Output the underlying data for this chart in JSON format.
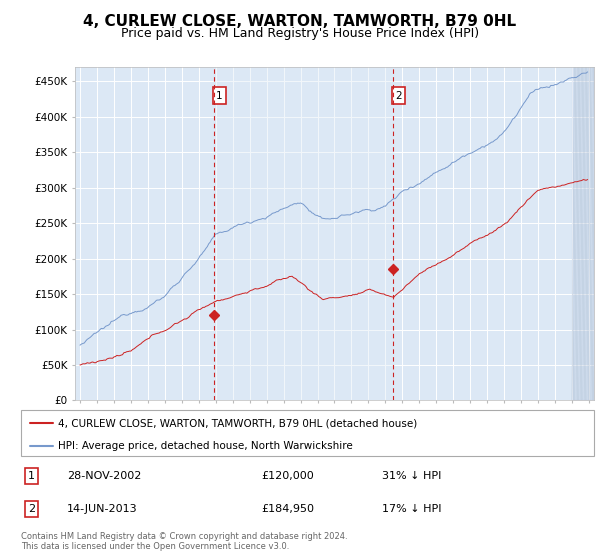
{
  "title": "4, CURLEW CLOSE, WARTON, TAMWORTH, B79 0HL",
  "subtitle": "Price paid vs. HM Land Registry's House Price Index (HPI)",
  "title_fontsize": 11,
  "subtitle_fontsize": 9,
  "background_color": "#ffffff",
  "plot_bg_color": "#dce8f5",
  "grid_color": "#ffffff",
  "hpi_line_color": "#7799cc",
  "sale_line_color": "#cc2222",
  "vline_color": "#cc2222",
  "marker1_year": 2002.91,
  "marker2_year": 2013.45,
  "sale1_price": 120000,
  "sale2_price": 184950,
  "legend_label_sale": "4, CURLEW CLOSE, WARTON, TAMWORTH, B79 0HL (detached house)",
  "legend_label_hpi": "HPI: Average price, detached house, North Warwickshire",
  "footer": "Contains HM Land Registry data © Crown copyright and database right 2024.\nThis data is licensed under the Open Government Licence v3.0.",
  "ylim": [
    0,
    470000
  ],
  "yticks": [
    0,
    50000,
    100000,
    150000,
    200000,
    250000,
    300000,
    350000,
    400000,
    450000
  ],
  "ytick_labels": [
    "£0",
    "£50K",
    "£100K",
    "£150K",
    "£200K",
    "£250K",
    "£300K",
    "£350K",
    "£400K",
    "£450K"
  ],
  "xmin": 1994.7,
  "xmax": 2025.3
}
